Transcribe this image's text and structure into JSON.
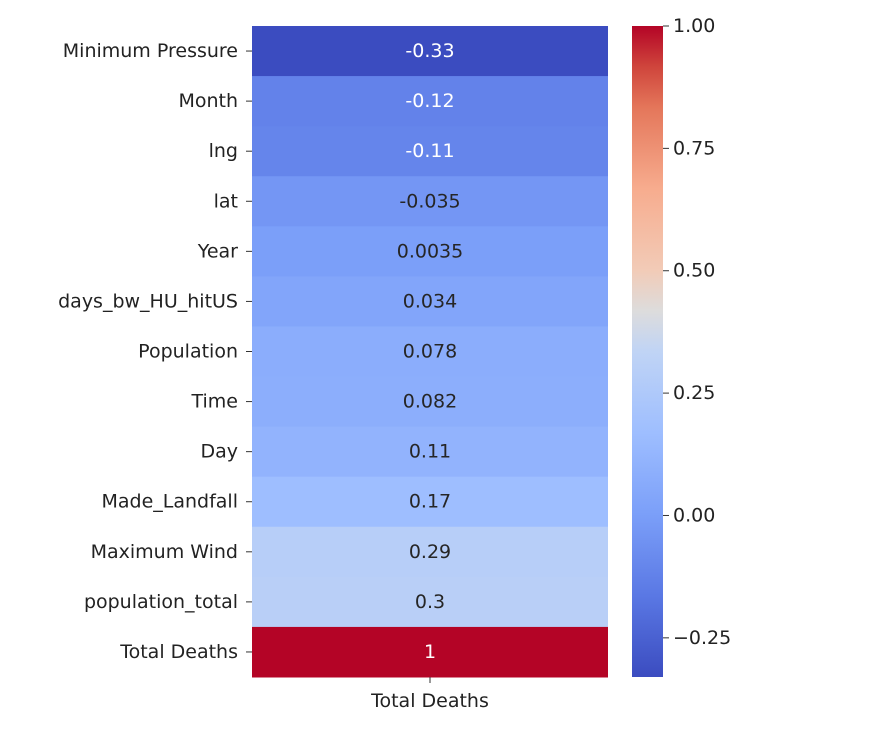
{
  "chart_data": {
    "type": "heatmap",
    "title": "",
    "xlabel": "",
    "ylabel": "",
    "columns": [
      "Total Deaths"
    ],
    "rows": [
      "Minimum Pressure",
      "Month",
      "lng",
      "lat",
      "Year",
      "days_bw_HU_hitUS",
      "Population",
      "Time",
      "Day",
      "Made_Landfall",
      "Maximum Wind",
      "population_total",
      "Total Deaths"
    ],
    "values": [
      -0.33,
      -0.12,
      -0.11,
      -0.035,
      0.0035,
      0.034,
      0.078,
      0.082,
      0.11,
      0.17,
      0.29,
      0.3,
      1
    ],
    "value_labels": [
      "-0.33",
      "-0.12",
      "-0.11",
      "-0.035",
      "0.0035",
      "0.034",
      "0.078",
      "0.082",
      "0.11",
      "0.17",
      "0.29",
      "0.3",
      "1"
    ],
    "colormap": "coolwarm",
    "vmin": -0.33,
    "vmax": 1.0,
    "colorbar": {
      "ticks": [
        1.0,
        0.75,
        0.5,
        0.25,
        0.0,
        -0.25
      ],
      "tick_labels": [
        "1.00",
        "0.75",
        "0.50",
        "0.25",
        "0.00",
        "−0.25"
      ],
      "position": "right"
    }
  }
}
